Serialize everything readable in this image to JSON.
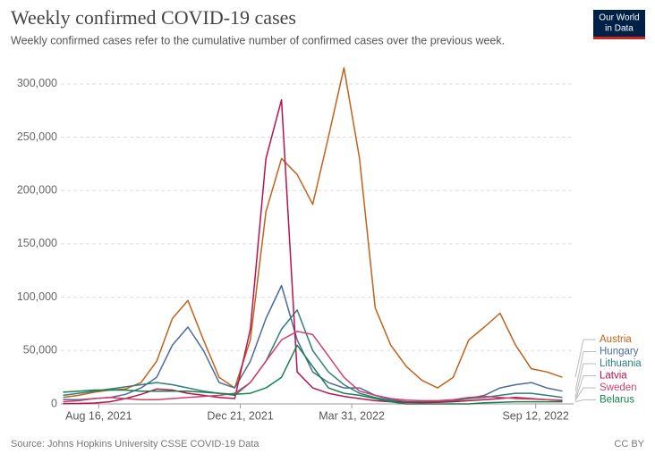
{
  "chart_data": {
    "type": "line",
    "title": "Weekly confirmed COVID-19 cases",
    "subtitle": "Weekly confirmed cases refer to the cumulative number of confirmed cases over the previous week.",
    "source": "Source: Johns Hopkins University CSSE COVID-19 Data",
    "license": "CC BY",
    "logo": [
      "Our World",
      "in Data"
    ],
    "x": [
      "2021-07-15",
      "2021-07-29",
      "2021-08-12",
      "2021-08-26",
      "2021-09-09",
      "2021-09-23",
      "2021-10-07",
      "2021-10-21",
      "2021-11-04",
      "2021-11-18",
      "2021-12-02",
      "2021-12-16",
      "2021-12-30",
      "2022-01-13",
      "2022-01-27",
      "2022-02-10",
      "2022-02-24",
      "2022-03-10",
      "2022-03-24",
      "2022-04-07",
      "2022-04-21",
      "2022-05-05",
      "2022-05-19",
      "2022-06-02",
      "2022-06-16",
      "2022-06-30",
      "2022-07-14",
      "2022-07-28",
      "2022-08-11",
      "2022-08-25",
      "2022-09-08",
      "2022-09-22",
      "2022-10-06"
    ],
    "xlim": [
      "2021-07-13",
      "2022-10-16"
    ],
    "xticks": [
      {
        "value": "2021-08-16",
        "label": "Aug 16, 2021"
      },
      {
        "value": "2021-12-21",
        "label": "Dec 21, 2021"
      },
      {
        "value": "2022-03-31",
        "label": "Mar 31, 2022"
      },
      {
        "value": "2022-09-12",
        "label": "Sep 12, 2022"
      }
    ],
    "ylim": [
      0,
      330000
    ],
    "yticks": [
      0,
      {
        "value": 50000,
        "label": "50,000"
      },
      {
        "value": 100000,
        "label": "100,000"
      },
      {
        "value": 150000,
        "label": "150,000"
      },
      {
        "value": 200000,
        "label": "200,000"
      },
      {
        "value": 250000,
        "label": "250,000"
      },
      {
        "value": 300000,
        "label": "300,000"
      }
    ],
    "grid": true,
    "series": [
      {
        "name": "Austria",
        "color": "#c0621b",
        "values": [
          6000,
          8000,
          11000,
          13000,
          14000,
          20000,
          40000,
          80000,
          97000,
          60000,
          25000,
          15000,
          60000,
          180000,
          230000,
          215000,
          187000,
          250000,
          315000,
          230000,
          90000,
          55000,
          35000,
          22000,
          15000,
          25000,
          60000,
          72000,
          85000,
          55000,
          33000,
          30000,
          25000
        ]
      },
      {
        "name": "Hungary",
        "color": "#4c6a9c",
        "values": [
          4000,
          4000,
          5000,
          6000,
          9000,
          15000,
          25000,
          55000,
          72000,
          50000,
          20000,
          15000,
          40000,
          80000,
          111000,
          60000,
          30000,
          20000,
          15000,
          15000,
          8000,
          4000,
          2000,
          1500,
          2000,
          3000,
          5000,
          8000,
          15000,
          18000,
          20000,
          15000,
          12000
        ]
      },
      {
        "name": "Lithuania",
        "color": "#2f7f78",
        "values": [
          8000,
          10000,
          12000,
          14000,
          16000,
          18000,
          20000,
          18000,
          15000,
          12000,
          10000,
          8000,
          20000,
          40000,
          70000,
          88000,
          50000,
          30000,
          18000,
          10000,
          6000,
          3000,
          2000,
          2000,
          2500,
          3000,
          5000,
          6000,
          8000,
          10000,
          10000,
          8000,
          6000
        ]
      },
      {
        "name": "Latvia",
        "color": "#b8134f",
        "values": [
          300,
          400,
          800,
          2000,
          5000,
          9000,
          14000,
          13000,
          10000,
          8000,
          6000,
          5000,
          70000,
          230000,
          285000,
          30000,
          15000,
          10000,
          7000,
          5000,
          3000,
          2000,
          1500,
          1200,
          1500,
          2000,
          3000,
          4000,
          5000,
          6000,
          5000,
          4000,
          3000
        ]
      },
      {
        "name": "Sweden",
        "color": "#d0406a",
        "values": [
          2000,
          3000,
          5000,
          6000,
          5000,
          4000,
          4000,
          5000,
          6000,
          7000,
          8000,
          10000,
          20000,
          40000,
          60000,
          68000,
          65000,
          45000,
          25000,
          12000,
          8000,
          5000,
          3500,
          3000,
          3000,
          4000,
          6000,
          7000,
          6000,
          5000,
          4500,
          4000,
          3500
        ]
      },
      {
        "name": "Belarus",
        "color": "#17804e",
        "values": [
          11000,
          12000,
          13000,
          13000,
          13000,
          12000,
          12000,
          12000,
          12000,
          11000,
          10000,
          9000,
          10000,
          15000,
          25000,
          55000,
          35000,
          15000,
          10000,
          8000,
          5000,
          2000,
          0,
          0,
          0,
          0,
          0,
          1000,
          1500,
          2000,
          2000,
          2000,
          2000
        ]
      }
    ]
  }
}
